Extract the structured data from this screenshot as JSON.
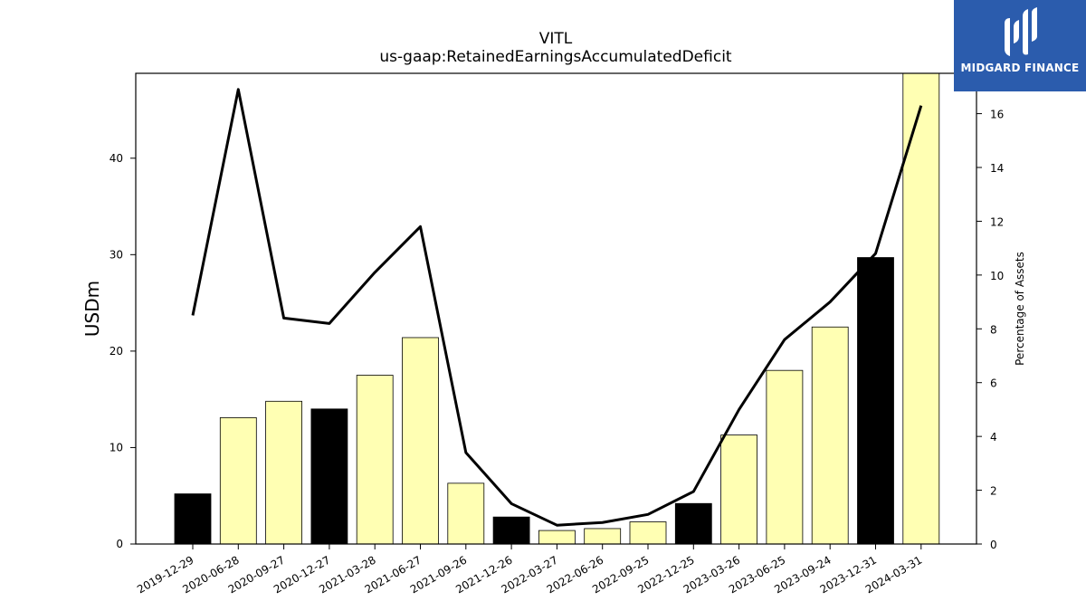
{
  "chart_data": {
    "type": "bar",
    "title": "VITL",
    "subtitle": "us-gaap:RetainedEarningsAccumulatedDeficit",
    "ylabel": "USDm",
    "y2label": "Percentage of Assets",
    "categories": [
      "2019-12-29",
      "2020-06-28",
      "2020-09-27",
      "2020-12-27",
      "2021-03-28",
      "2021-06-27",
      "2021-09-26",
      "2021-12-26",
      "2022-03-27",
      "2022-06-26",
      "2022-09-25",
      "2022-12-25",
      "2023-03-26",
      "2023-06-25",
      "2023-09-24",
      "2023-12-31",
      "2024-03-31"
    ],
    "bar_values": [
      5.2,
      13.1,
      14.8,
      14.0,
      17.5,
      21.4,
      6.3,
      2.8,
      1.4,
      1.6,
      2.3,
      4.2,
      11.3,
      18.0,
      22.5,
      29.7,
      48.9
    ],
    "bar_colors": [
      "#000000",
      "#ffffb3",
      "#ffffb3",
      "#000000",
      "#ffffb3",
      "#ffffb3",
      "#ffffb3",
      "#000000",
      "#ffffb3",
      "#ffffb3",
      "#ffffb3",
      "#000000",
      "#ffffb3",
      "#ffffb3",
      "#ffffb3",
      "#000000",
      "#ffffb3"
    ],
    "line_values": [
      8.5,
      16.9,
      8.4,
      8.2,
      10.1,
      11.8,
      3.4,
      1.5,
      0.7,
      0.8,
      1.1,
      1.95,
      5.0,
      7.6,
      9.0,
      10.8,
      16.3
    ],
    "ylim": [
      0,
      48.8
    ],
    "y2lim": [
      0,
      17.5
    ],
    "yticks": [
      0,
      10,
      20,
      30,
      40
    ],
    "y2ticks": [
      0,
      2,
      4,
      6,
      8,
      10,
      12,
      14,
      16
    ],
    "grid": false
  },
  "logo": {
    "text": "MIDGARD FINANCE",
    "color": "#2b5cad"
  }
}
